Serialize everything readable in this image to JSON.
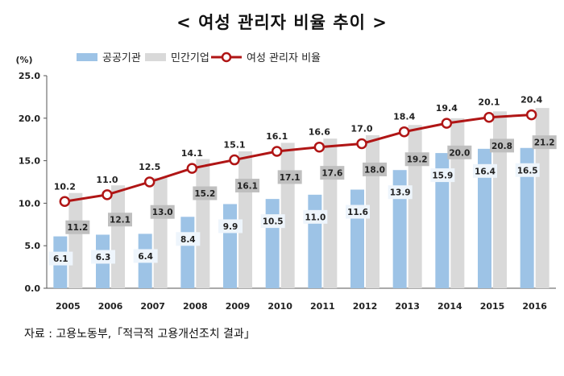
{
  "header": {
    "title": "< 여성 관리자 비율 추이 >"
  },
  "footer": {
    "source": "자료 : 고용노동부,「적극적 고용개선조치 결과」"
  },
  "colors": {
    "public": "#9dc3e6",
    "private": "#d9d9d9",
    "line": "#b01515",
    "public_label_bg": "#eef5fc",
    "private_label_bg": "#bfbfbf"
  },
  "chart_data": {
    "type": "bar",
    "ylabel": "(%)",
    "ylim": [
      0,
      25
    ],
    "yticks": [
      "0.0",
      "5.0",
      "10.0",
      "15.0",
      "20.0",
      "25.0"
    ],
    "grid": false,
    "legend": "top-left",
    "categories": [
      "2005",
      "2006",
      "2007",
      "2008",
      "2009",
      "2010",
      "2011",
      "2012",
      "2013",
      "2014",
      "2015",
      "2016"
    ],
    "series": [
      {
        "name": "공공기관",
        "type": "bar",
        "values": [
          6.1,
          6.3,
          6.4,
          8.4,
          9.9,
          10.5,
          11.0,
          11.6,
          13.9,
          15.9,
          16.4,
          16.5
        ],
        "labels": [
          "6.1",
          "6.3",
          "6.4",
          "8.4",
          "9.9",
          "10.5",
          "11.0",
          "11.6",
          "13.9",
          "15.9",
          "16.4",
          "16.5"
        ]
      },
      {
        "name": "민간기업",
        "type": "bar",
        "values": [
          11.2,
          12.1,
          13.0,
          15.2,
          16.1,
          17.1,
          17.6,
          18.0,
          19.2,
          20.0,
          20.8,
          21.2
        ],
        "labels": [
          "11.2",
          "12.1",
          "13.0",
          "15.2",
          "16.1",
          "17.1",
          "17.6",
          "18.0",
          "19.2",
          "20.0",
          "20.8",
          "21.2"
        ]
      },
      {
        "name": "여성 관리자 비율",
        "type": "line",
        "values": [
          10.2,
          11.0,
          12.5,
          14.1,
          15.1,
          16.1,
          16.6,
          17.0,
          18.4,
          19.4,
          20.1,
          20.4
        ],
        "labels": [
          "10.2",
          "11.0",
          "12.5",
          "14.1",
          "15.1",
          "16.1",
          "16.6",
          "17.0",
          "18.4",
          "19.4",
          "20.1",
          "20.4"
        ]
      }
    ]
  }
}
